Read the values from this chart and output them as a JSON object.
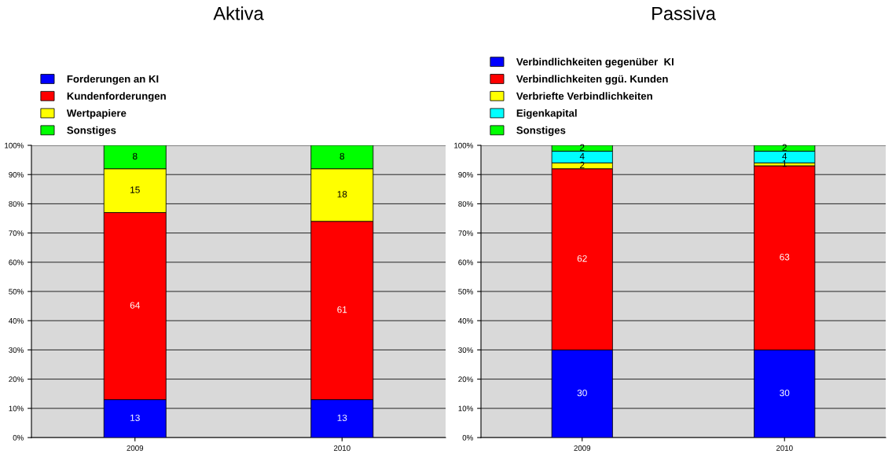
{
  "chart_data": [
    {
      "type": "bar",
      "title": "Aktiva",
      "categories": [
        "2009",
        "2010"
      ],
      "stacked": true,
      "data_labels": true,
      "grid": "y",
      "legend": "top left",
      "ylim": [
        0,
        100
      ],
      "yticks": [
        {
          "value": 0,
          "label": "0%"
        },
        {
          "value": 10,
          "label": "10%"
        },
        {
          "value": 20,
          "label": "20%"
        },
        {
          "value": 30,
          "label": "30%"
        },
        {
          "value": 40,
          "label": "40%"
        },
        {
          "value": 50,
          "label": "50%"
        },
        {
          "value": 60,
          "label": "60%"
        },
        {
          "value": 70,
          "label": "70%"
        },
        {
          "value": 80,
          "label": "80%"
        },
        {
          "value": 90,
          "label": "90%"
        },
        {
          "value": 100,
          "label": "100%"
        }
      ],
      "series": [
        {
          "name": "Forderungen an KI",
          "color": "#0000ff",
          "values": [
            13,
            13
          ]
        },
        {
          "name": "Kundenforderungen",
          "color": "#ff0000",
          "values": [
            64,
            61
          ]
        },
        {
          "name": "Wertpapiere",
          "color": "#ffff00",
          "values": [
            15,
            18
          ]
        },
        {
          "name": "Sonstiges",
          "color": "#00ff00",
          "values": [
            8,
            8
          ]
        }
      ]
    },
    {
      "type": "bar",
      "title": "Passiva",
      "categories": [
        "2009",
        "2010"
      ],
      "stacked": true,
      "data_labels": true,
      "grid": "y",
      "legend": "top left",
      "ylim": [
        0,
        100
      ],
      "yticks": [
        {
          "value": 0,
          "label": "0%"
        },
        {
          "value": 10,
          "label": "10%"
        },
        {
          "value": 20,
          "label": "20%"
        },
        {
          "value": 30,
          "label": "30%"
        },
        {
          "value": 40,
          "label": "40%"
        },
        {
          "value": 50,
          "label": "50%"
        },
        {
          "value": 60,
          "label": "60%"
        },
        {
          "value": 70,
          "label": "70%"
        },
        {
          "value": 80,
          "label": "80%"
        },
        {
          "value": 90,
          "label": "90%"
        },
        {
          "value": 100,
          "label": "100%"
        }
      ],
      "series": [
        {
          "name": "Verbindlichkeiten gegenüber  KI",
          "color": "#0000ff",
          "values": [
            30,
            30
          ]
        },
        {
          "name": "Verbindlichkeiten ggü. Kunden",
          "color": "#ff0000",
          "values": [
            62,
            63
          ]
        },
        {
          "name": "Verbriefte Verbindlichkeiten",
          "color": "#ffff00",
          "values": [
            2,
            1
          ]
        },
        {
          "name": "Eigenkapital",
          "color": "#00ffff",
          "values": [
            4,
            4
          ]
        },
        {
          "name": "Sonstiges",
          "color": "#00ff00",
          "values": [
            2,
            2
          ]
        }
      ]
    }
  ]
}
